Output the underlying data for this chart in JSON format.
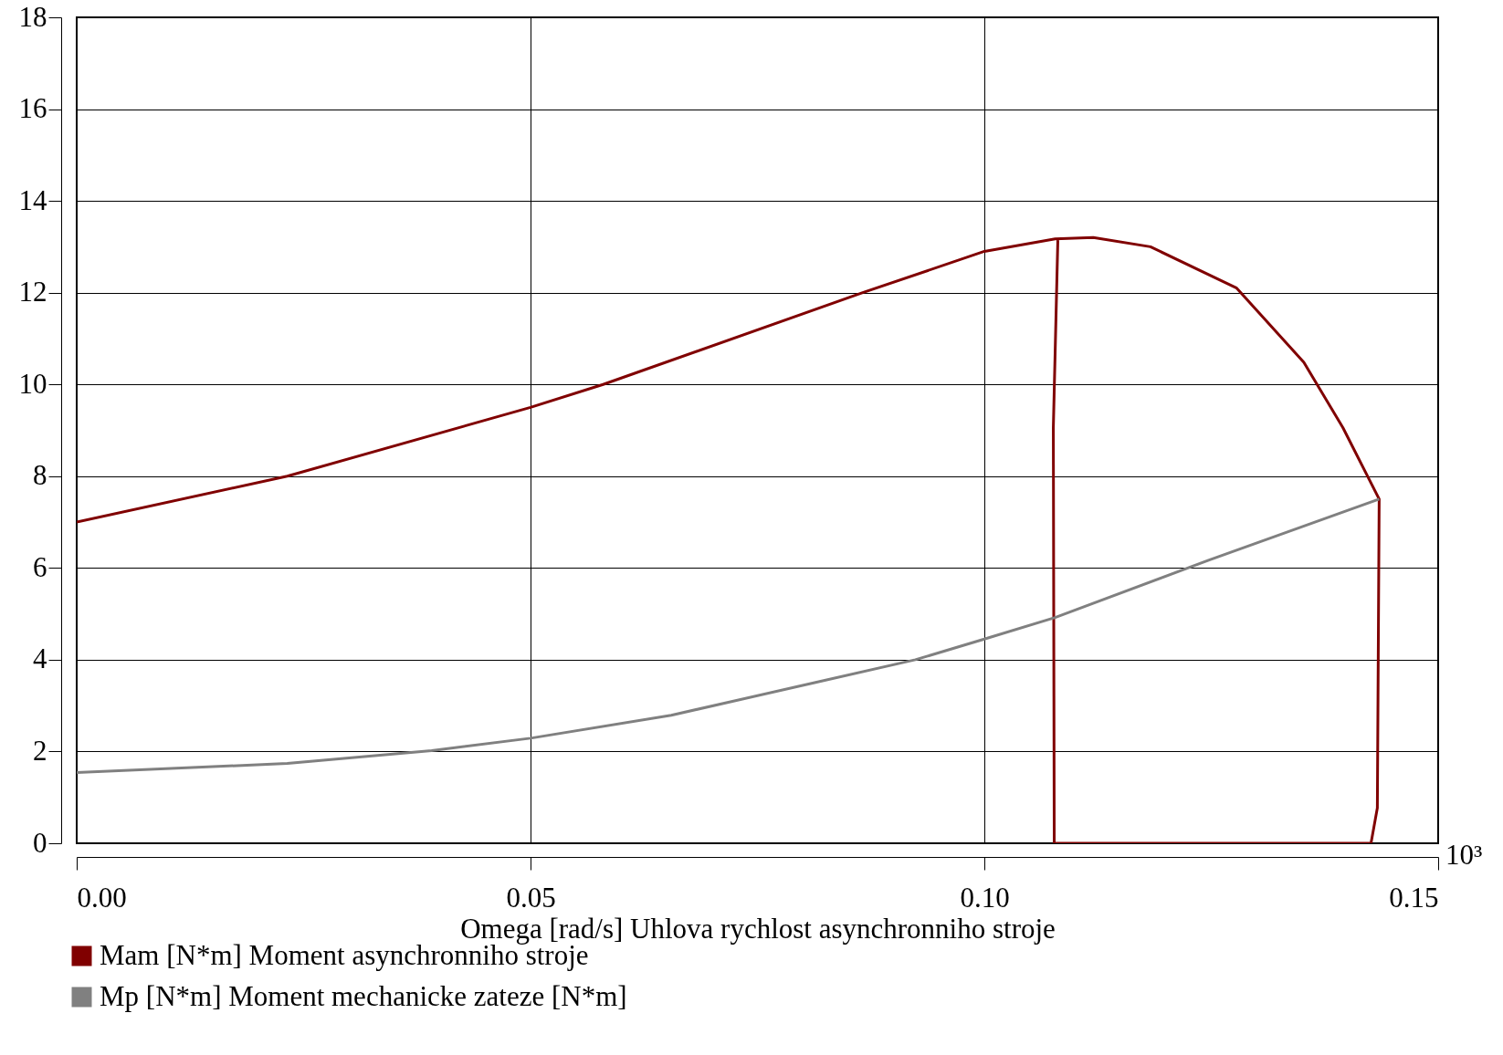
{
  "chart_data": {
    "type": "line",
    "xlabel": "Omega [rad/s] Uhlova rychlost asynchronniho stroje",
    "xlim": [
      0,
      0.15
    ],
    "xticks": [
      {
        "value": 0,
        "label": "0.00"
      },
      {
        "value": 0.05,
        "label": "0.05"
      },
      {
        "value": 0.1,
        "label": "0.10"
      },
      {
        "value": 0.15,
        "label": "0.15"
      }
    ],
    "ylim": [
      0,
      18
    ],
    "yticks": [
      0,
      2,
      4,
      6,
      8,
      10,
      12,
      14,
      16,
      18
    ],
    "grid": true,
    "legend": "bottom",
    "line_style": "solid",
    "annotations": [
      "10³"
    ],
    "series": [
      {
        "name": "Mam [N*m] Moment asynchronniho stroje",
        "color": "#800000",
        "x": [
          0,
          0.0232,
          0.05,
          0.058,
          0.0866,
          0.1,
          0.1078,
          0.112,
          0.1183,
          0.1278,
          0.1352,
          0.1395,
          0.1435,
          0.1433,
          0.1426,
          0.1077,
          0.1076,
          0.1081
        ],
        "values": [
          7.0,
          8.0,
          9.5,
          10.0,
          12.0,
          12.9,
          13.17,
          13.2,
          13.0,
          12.1,
          10.48,
          9.06,
          7.5,
          0.77,
          0,
          0,
          9.06,
          13.17
        ]
      },
      {
        "name": "Mp [N*m] Moment mechanicke zateze [N*m]",
        "color": "#808080",
        "x": [
          0,
          0.0232,
          0.0391,
          0.05,
          0.0655,
          0.0813,
          0.0924,
          0.1,
          0.1078,
          0.1247,
          0.1435
        ],
        "values": [
          1.54,
          1.74,
          2.02,
          2.29,
          2.79,
          3.5,
          4.0,
          4.45,
          4.92,
          6.17,
          7.5
        ]
      }
    ]
  }
}
